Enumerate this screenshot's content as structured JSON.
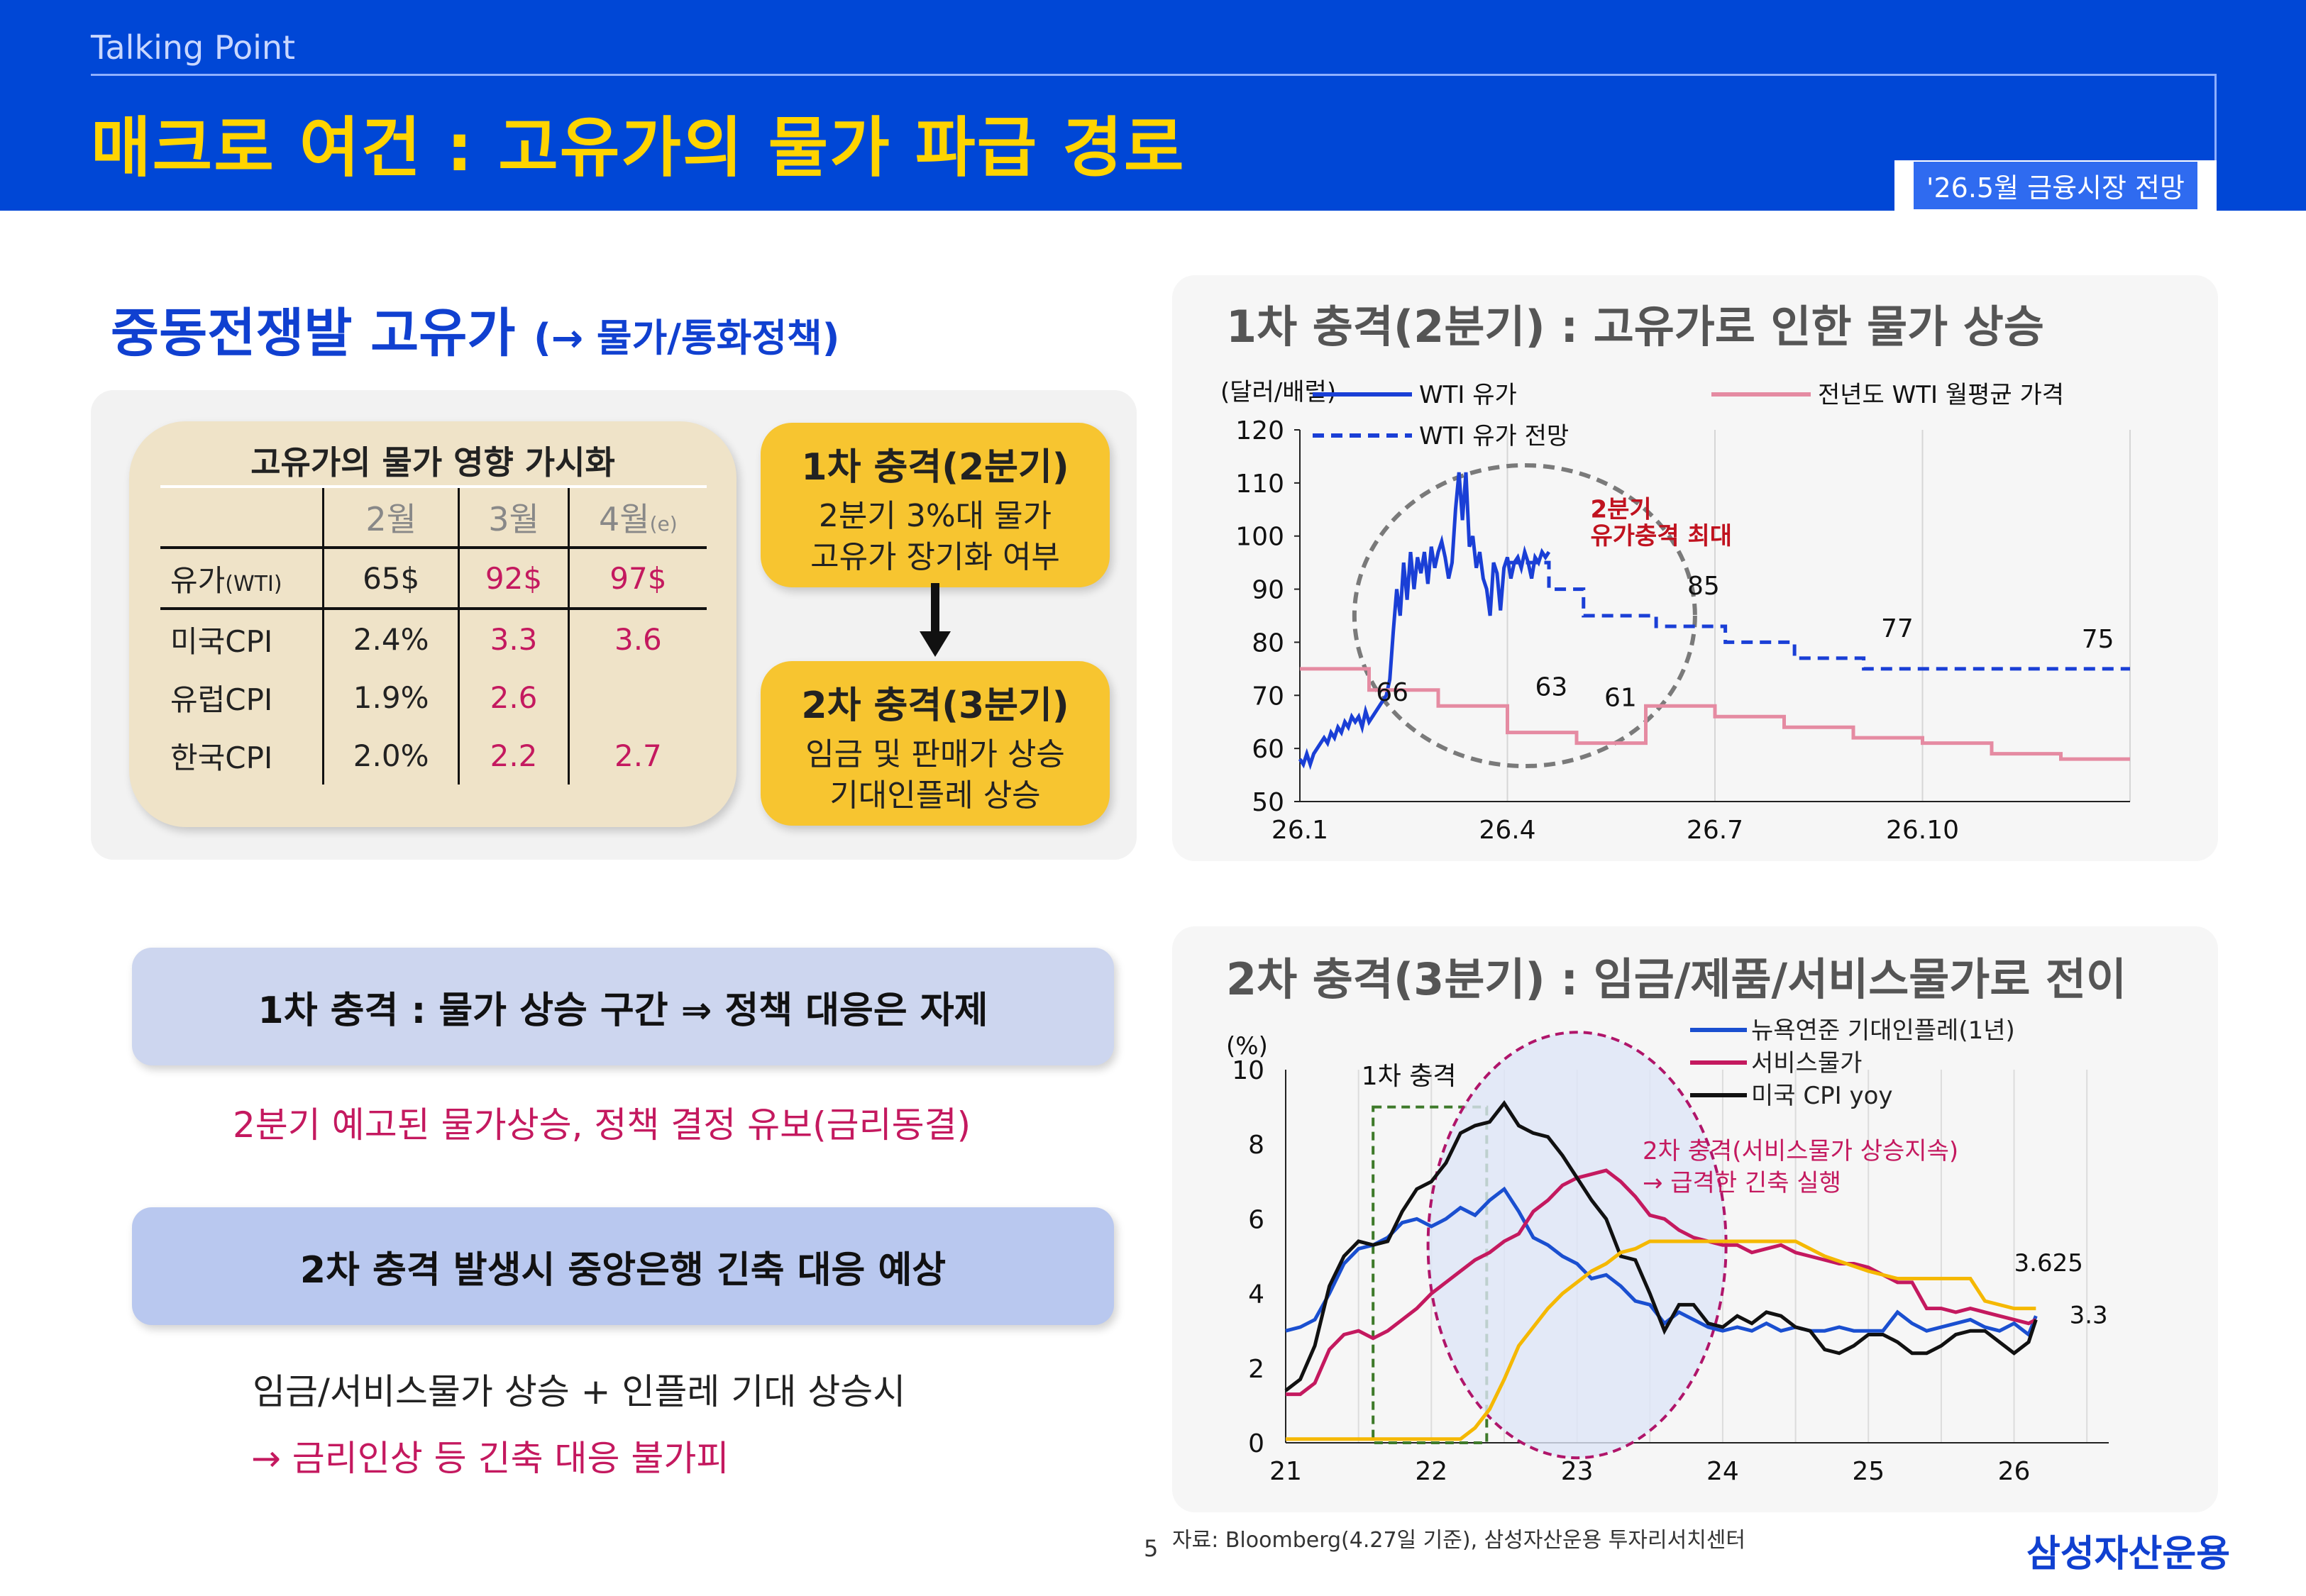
{
  "header": {
    "talking_point": "Talking Point",
    "title": "매크로 여건 : 고유가의 물가 파급 경로",
    "tag": "'26.5월 금융시장 전망"
  },
  "left": {
    "section_title": "중동전쟁발 고유가",
    "section_sub": "(→ 물가/통화정책)",
    "table": {
      "title": "고유가의 물가 영향 가시화",
      "headers": [
        "",
        "2월",
        "3월",
        "4월"
      ],
      "header_suffix": "(e)",
      "rows": [
        {
          "label": "유가",
          "label_suffix": "(WTI)",
          "cells": [
            "65$",
            "92$",
            "97$"
          ]
        },
        {
          "label": "미국CPI",
          "label_suffix": "",
          "cells": [
            "2.4%",
            "3.3",
            "3.6"
          ]
        },
        {
          "label": "유럽CPI",
          "label_suffix": "",
          "cells": [
            "1.9%",
            "2.6",
            ""
          ]
        },
        {
          "label": "한국CPI",
          "label_suffix": "",
          "cells": [
            "2.0%",
            "2.2",
            "2.7"
          ]
        }
      ]
    },
    "shock1": {
      "title": "1차 충격(2분기)",
      "line1": "2분기 3%대 물가",
      "line2": "고유가 장기화 여부"
    },
    "shock2": {
      "title": "2차 충격(3분기)",
      "line1": "임금 및 판매가 상승",
      "line2": "기대인플레 상승"
    },
    "box1": "1차 충격 : 물가 상승 구간 ⇒ 정책 대응은 자제",
    "note1": "2분기 예고된 물가상승, 정책 결정 유보(금리동결)",
    "box2": "2차 충격 발생시 중앙은행 긴축 대응 예상",
    "note2": "임금/서비스물가 상승 + 인플레 기대 상승시",
    "note3": "→ 금리인상 등 긴축 대응 불가피"
  },
  "chart_data": [
    {
      "type": "line",
      "title": "1차 충격(2분기) : 고유가로 인한 물가 상승",
      "ylabel": "(달러/배럴)",
      "ylim": [
        50,
        120
      ],
      "yticks": [
        50,
        60,
        70,
        80,
        90,
        100,
        110,
        120
      ],
      "xticks": [
        "26.1",
        "26.4",
        "26.7",
        "26.10"
      ],
      "grid": true,
      "legend": "top",
      "series": [
        {
          "name": "WTI 유가",
          "style": "solid",
          "color": "#1a3fd6",
          "x": [
            0,
            0.05,
            0.1,
            0.15,
            0.2,
            0.25,
            0.3,
            0.35,
            0.4,
            0.45,
            0.5,
            0.55,
            0.6,
            0.65,
            0.7,
            0.75,
            0.8,
            0.85,
            0.9,
            0.95,
            1.0,
            1.05,
            1.1,
            1.15,
            1.2,
            1.25,
            1.3,
            1.35,
            1.4,
            1.45,
            1.5,
            1.55,
            1.6,
            1.65,
            1.7,
            1.75,
            1.8,
            1.85,
            1.9,
            1.95,
            2.0,
            2.05,
            2.1,
            2.15,
            2.2,
            2.25,
            2.3,
            2.35,
            2.4,
            2.45,
            2.5,
            2.55,
            2.6,
            2.65,
            2.7,
            2.75,
            2.8,
            2.85,
            2.9,
            2.95,
            3.0,
            3.05,
            3.1,
            3.15,
            3.2,
            3.25,
            3.3,
            3.35,
            3.4,
            3.45,
            3.5,
            3.55,
            3.6
          ],
          "y": [
            58,
            57,
            59,
            57,
            59,
            60,
            61,
            62,
            61,
            63,
            62,
            64,
            63,
            65,
            64,
            66,
            65,
            66,
            64,
            67,
            65,
            66,
            67,
            68,
            69,
            70,
            73,
            82,
            90,
            85,
            95,
            88,
            97,
            90,
            96,
            93,
            97,
            91,
            98,
            94,
            97,
            99,
            96,
            92,
            95,
            105,
            112,
            103,
            112,
            98,
            100,
            94,
            97,
            92,
            90,
            85,
            95,
            93,
            86,
            94,
            96,
            92,
            95,
            96,
            94,
            97,
            95,
            92,
            96,
            95,
            97,
            96,
            97
          ]
        },
        {
          "name": "WTI 유가 전망",
          "style": "dashed",
          "color": "#1a3fd6",
          "x": [
            3.0,
            3.6,
            3.6,
            4.1,
            4.1,
            4.65,
            4.65,
            5.15,
            5.15,
            5.65,
            5.65,
            6.15,
            6.15,
            6.65,
            6.65,
            7.15,
            7.15,
            7.65,
            7.65,
            8.15,
            8.15,
            8.65,
            8.65,
            9.15,
            9.15,
            9.65,
            9.65,
            10.15,
            10.15,
            11.0,
            11.0,
            12.0
          ],
          "y": [
            95,
            95,
            90,
            90,
            85,
            85,
            85,
            85,
            83,
            83,
            83,
            83,
            80,
            80,
            80,
            80,
            77,
            77,
            77,
            77,
            75,
            75,
            75,
            75,
            75,
            75,
            75,
            75,
            75,
            75,
            75,
            75
          ]
        },
        {
          "name": "전년도 WTI 월평균 가격",
          "style": "solid",
          "color": "#e58ba2",
          "x": [
            0,
            1,
            1,
            2,
            2,
            3,
            3,
            4,
            4,
            5,
            5,
            6,
            6,
            7,
            7,
            8,
            8,
            9,
            9,
            10,
            10,
            11,
            11,
            12
          ],
          "y": [
            75,
            75,
            71,
            71,
            68,
            68,
            63,
            63,
            61,
            61,
            68,
            68,
            66,
            66,
            64,
            64,
            62,
            62,
            61,
            61,
            59,
            59,
            58,
            58
          ]
        }
      ],
      "annotations": [
        "66",
        "63",
        "61",
        "85",
        "77",
        "75",
        "2분기",
        "유가충격 최대"
      ]
    },
    {
      "type": "line",
      "title": "2차 충격(3분기) : 임금/제품/서비스물가로 전이",
      "ylabel": "(%)",
      "ylim": [
        0,
        10
      ],
      "yticks": [
        0,
        2,
        4,
        6,
        8,
        10
      ],
      "xticks": [
        "21",
        "22",
        "23",
        "24",
        "25",
        "26"
      ],
      "grid": true,
      "legend": "top-right",
      "series": [
        {
          "name": "뉴욕연준 기대인플레(1년)",
          "color": "#1a4fd0",
          "x": [
            21.0,
            21.1,
            21.2,
            21.3,
            21.4,
            21.5,
            21.6,
            21.7,
            21.8,
            21.9,
            22.0,
            22.1,
            22.2,
            22.3,
            22.4,
            22.5,
            22.6,
            22.7,
            22.8,
            22.9,
            23.0,
            23.1,
            23.2,
            23.3,
            23.4,
            23.5,
            23.6,
            23.7,
            23.8,
            23.9,
            24.0,
            24.1,
            24.2,
            24.3,
            24.4,
            24.5,
            24.6,
            24.7,
            24.8,
            24.9,
            25.0,
            25.1,
            25.2,
            25.3,
            25.4,
            25.5,
            25.6,
            25.7,
            25.8,
            25.9,
            26.0,
            26.1,
            26.15
          ],
          "y": [
            3.0,
            3.1,
            3.3,
            4.0,
            4.8,
            5.2,
            5.3,
            5.5,
            5.9,
            6.0,
            5.8,
            6.0,
            6.3,
            6.1,
            6.5,
            6.8,
            6.2,
            5.5,
            5.3,
            5.0,
            4.8,
            4.4,
            4.5,
            4.2,
            3.8,
            3.7,
            3.2,
            3.5,
            3.3,
            3.1,
            3.0,
            3.1,
            3.0,
            3.2,
            3.0,
            3.1,
            3.0,
            3.0,
            3.1,
            3.0,
            3.0,
            3.0,
            3.5,
            3.2,
            3.0,
            3.1,
            3.2,
            3.3,
            3.1,
            3.0,
            3.2,
            2.9,
            3.4
          ]
        },
        {
          "name": "서비스물가",
          "color": "#c4195f",
          "x": [
            21.0,
            21.1,
            21.2,
            21.3,
            21.4,
            21.5,
            21.6,
            21.7,
            21.8,
            21.9,
            22.0,
            22.1,
            22.2,
            22.3,
            22.4,
            22.5,
            22.6,
            22.7,
            22.8,
            22.9,
            23.0,
            23.1,
            23.2,
            23.3,
            23.4,
            23.5,
            23.6,
            23.7,
            23.8,
            23.9,
            24.0,
            24.1,
            24.2,
            24.3,
            24.4,
            24.5,
            24.6,
            24.7,
            24.8,
            24.9,
            25.0,
            25.1,
            25.2,
            25.3,
            25.4,
            25.5,
            25.6,
            25.7,
            25.8,
            25.9,
            26.0,
            26.1,
            26.15
          ],
          "y": [
            1.3,
            1.3,
            1.6,
            2.5,
            2.9,
            3.0,
            2.8,
            3.0,
            3.3,
            3.6,
            4.0,
            4.3,
            4.6,
            4.9,
            5.1,
            5.4,
            5.6,
            6.2,
            6.5,
            6.9,
            7.1,
            7.2,
            7.3,
            7.0,
            6.6,
            6.1,
            6.0,
            5.7,
            5.5,
            5.4,
            5.3,
            5.3,
            5.1,
            5.2,
            5.3,
            5.1,
            5.0,
            4.9,
            4.8,
            4.8,
            4.7,
            4.5,
            4.3,
            4.3,
            3.6,
            3.6,
            3.5,
            3.6,
            3.5,
            3.4,
            3.3,
            3.2,
            3.3
          ]
        },
        {
          "name": "미국 CPI yoy",
          "color": "#111111",
          "x": [
            21.0,
            21.1,
            21.2,
            21.3,
            21.4,
            21.5,
            21.6,
            21.7,
            21.8,
            21.9,
            22.0,
            22.1,
            22.2,
            22.3,
            22.4,
            22.5,
            22.6,
            22.7,
            22.8,
            22.9,
            23.0,
            23.1,
            23.2,
            23.3,
            23.4,
            23.5,
            23.6,
            23.7,
            23.8,
            23.9,
            24.0,
            24.1,
            24.2,
            24.3,
            24.4,
            24.5,
            24.6,
            24.7,
            24.8,
            24.9,
            25.0,
            25.1,
            25.2,
            25.3,
            25.4,
            25.5,
            25.6,
            25.7,
            25.8,
            25.9,
            26.0,
            26.1,
            26.15
          ],
          "y": [
            1.4,
            1.7,
            2.6,
            4.2,
            5.0,
            5.4,
            5.3,
            5.4,
            6.2,
            6.8,
            7.0,
            7.5,
            8.3,
            8.5,
            8.6,
            9.1,
            8.5,
            8.3,
            8.2,
            7.7,
            7.1,
            6.5,
            6.0,
            5.0,
            4.9,
            4.0,
            3.0,
            3.7,
            3.7,
            3.2,
            3.1,
            3.4,
            3.2,
            3.5,
            3.4,
            3.1,
            3.0,
            2.5,
            2.4,
            2.6,
            2.9,
            2.9,
            2.7,
            2.4,
            2.4,
            2.6,
            2.9,
            3.0,
            3.0,
            2.7,
            2.4,
            2.7,
            3.3
          ]
        },
        {
          "name": "",
          "color": "#f5b800",
          "x": [
            21.0,
            21.6,
            22.0,
            22.1,
            22.2,
            22.3,
            22.4,
            22.5,
            22.6,
            22.7,
            22.8,
            22.9,
            23.0,
            23.1,
            23.2,
            23.3,
            23.4,
            23.5,
            24.0,
            24.5,
            24.7,
            25.0,
            25.2,
            25.5,
            25.7,
            25.8,
            26.0,
            26.15
          ],
          "y": [
            0.1,
            0.1,
            0.1,
            0.1,
            0.1,
            0.4,
            0.9,
            1.7,
            2.6,
            3.1,
            3.6,
            4.0,
            4.3,
            4.6,
            4.8,
            5.1,
            5.2,
            5.4,
            5.4,
            5.4,
            5.0,
            4.6,
            4.4,
            4.4,
            4.4,
            3.8,
            3.6,
            3.6
          ]
        }
      ],
      "annotations": [
        "1차 충격",
        "2차 충격(서비스물가 상승지속)",
        "→ 급격한 긴축 실행",
        "3.625",
        "3.3"
      ]
    }
  ],
  "footer": {
    "page": "5",
    "source": "자료: Bloomberg(4.27일 기준), 삼성자산운용 투자리서치센터",
    "brand": "삼성자산운용"
  }
}
